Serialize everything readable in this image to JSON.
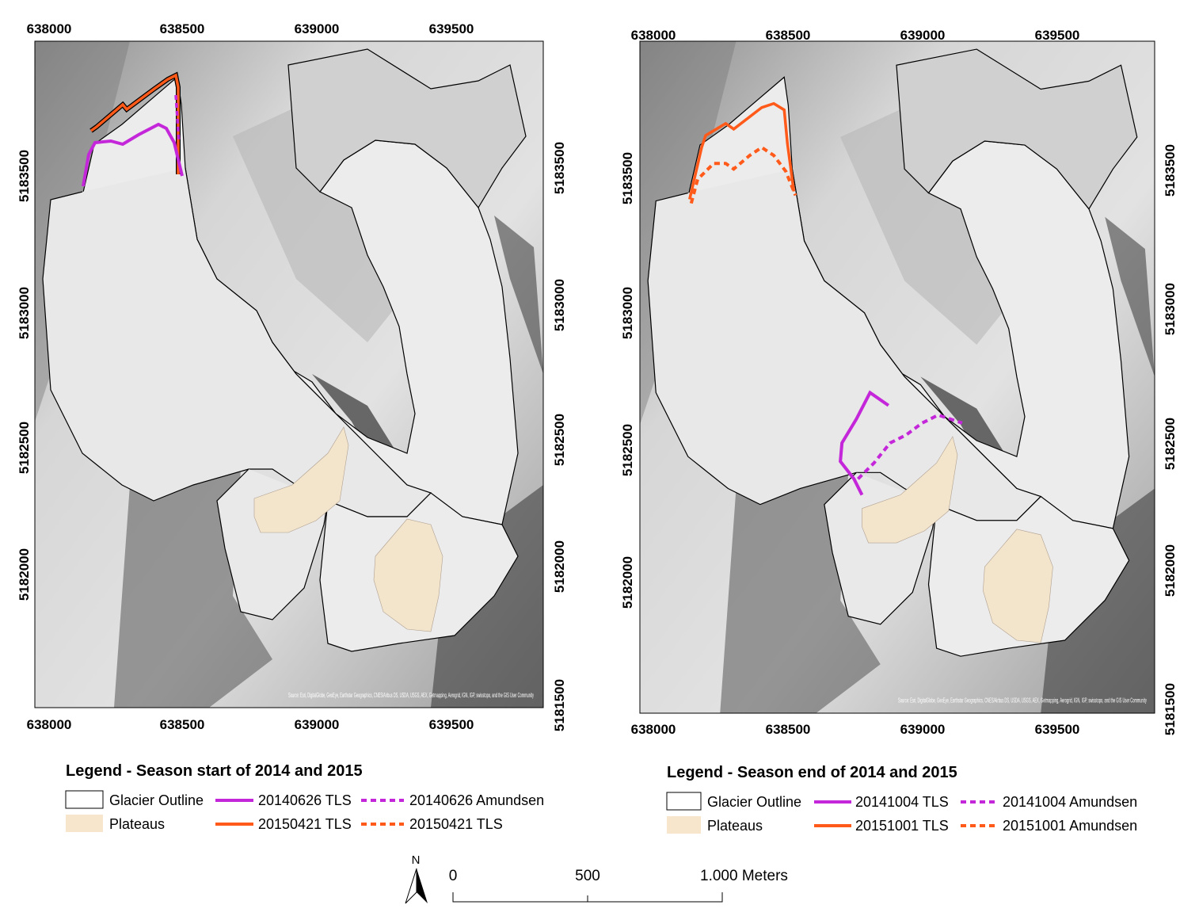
{
  "maps": [
    {
      "x_ticks": [
        "638000",
        "638500",
        "639000",
        "639500"
      ],
      "y_ticks_left": [
        "5183500",
        "5183000",
        "5182500",
        "5182000"
      ],
      "y_ticks_right": [
        "5183500",
        "5183000",
        "5182500",
        "5182000",
        "5181500"
      ],
      "attribution": "Source: Esri, DigitalGlobe, GeoEye, Earthstar Geographics, CNES/Airbus DS, USDA, USGS, AEX, Getmapping, Aerogrid, IGN, IGP, swisstopo, and the GIS User Community",
      "legend": {
        "title": "Legend - Season start of 2014 and 2015",
        "items": [
          "Glacier Outline",
          "Plateaus",
          "20140626 TLS",
          "20150421 TLS",
          "20140626 Amundsen",
          "20150421 TLS"
        ]
      }
    },
    {
      "x_ticks": [
        "638000",
        "638500",
        "639000",
        "639500"
      ],
      "y_ticks_left": [
        "5183500",
        "5183000",
        "5182500",
        "5182000"
      ],
      "y_ticks_right": [
        "5183500",
        "5183000",
        "5182500",
        "5182000",
        "5181500"
      ],
      "attribution": "Source: Esri, DigitalGlobe, GeoEye, Earthstar Geographics, CNES/Airbus DS, USDA, USGS, AEX, Getmapping, Aerogrid, IGN, IGP, swisstopo, and the GIS User Community",
      "legend": {
        "title": "Legend - Season end of 2014 and 2015",
        "items": [
          "Glacier Outline",
          "Plateaus",
          "20141004 TLS",
          "20151001 TLS",
          "20141004 Amundsen",
          "20151001 Amundsen"
        ]
      }
    }
  ],
  "scale_bar": {
    "north": "N",
    "labels": [
      "0",
      "500",
      "1.000 Meters"
    ]
  }
}
